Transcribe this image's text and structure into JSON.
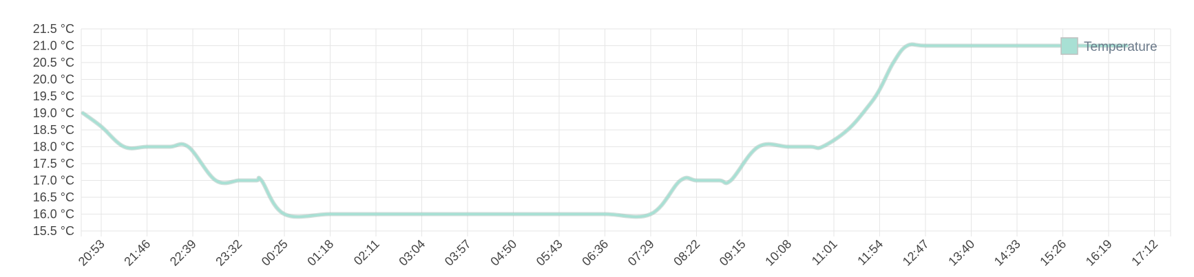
{
  "chart_data": {
    "type": "line",
    "title": "",
    "xlabel": "",
    "ylabel": "",
    "unit": "°C",
    "x": [
      "20:53",
      "21:46",
      "22:39",
      "23:32",
      "00:25",
      "01:18",
      "02:11",
      "03:04",
      "03:57",
      "04:50",
      "05:43",
      "06:36",
      "07:29",
      "08:22",
      "09:15",
      "10:08",
      "11:01",
      "11:54",
      "12:47",
      "13:40",
      "14:33",
      "15:26",
      "16:19",
      "17:12"
    ],
    "ytick_labels": [
      "15.5 °C",
      "16.0 °C",
      "16.5 °C",
      "17.0 °C",
      "17.5 °C",
      "18.0 °C",
      "18.5 °C",
      "19.0 °C",
      "19.5 °C",
      "20.0 °C",
      "20.5 °C",
      "21.0 °C",
      "21.5 °C"
    ],
    "ylim": [
      15.5,
      21.5
    ],
    "grid": true,
    "legend": "top-right",
    "series": [
      {
        "name": "Temperature",
        "color": "#a8e0d4",
        "points": [
          [
            -0.4,
            19.0
          ],
          [
            0,
            18.6
          ],
          [
            0.5,
            18.0
          ],
          [
            1.0,
            18.0
          ],
          [
            1.5,
            18.0
          ],
          [
            1.9,
            18.0
          ],
          [
            2.5,
            17.0
          ],
          [
            3.0,
            17.0
          ],
          [
            3.5,
            17.0
          ],
          [
            3.1,
            17.0
          ],
          [
            3.4,
            17.0
          ],
          [
            4.0,
            16.0
          ],
          [
            5.0,
            16.0
          ],
          [
            6.0,
            16.0
          ],
          [
            7.0,
            16.0
          ],
          [
            8.0,
            16.0
          ],
          [
            9.0,
            16.0
          ],
          [
            10.0,
            16.0
          ],
          [
            11.0,
            16.0
          ],
          [
            12.0,
            16.0
          ],
          [
            12.65,
            17.0
          ],
          [
            13.0,
            17.0
          ],
          [
            13.5,
            17.0
          ],
          [
            13.75,
            17.0
          ],
          [
            14.35,
            18.0
          ],
          [
            15.0,
            18.0
          ],
          [
            15.5,
            18.0
          ],
          [
            15.75,
            18.0
          ],
          [
            16.3,
            18.5
          ],
          [
            16.75,
            19.2
          ],
          [
            17.0,
            19.7
          ],
          [
            17.3,
            20.5
          ],
          [
            17.6,
            21.0
          ],
          [
            18.0,
            21.0
          ],
          [
            19.0,
            21.0
          ],
          [
            20.0,
            21.0
          ],
          [
            21.0,
            21.0
          ],
          [
            22.0,
            21.0
          ],
          [
            22.4,
            21.0
          ]
        ]
      }
    ]
  }
}
